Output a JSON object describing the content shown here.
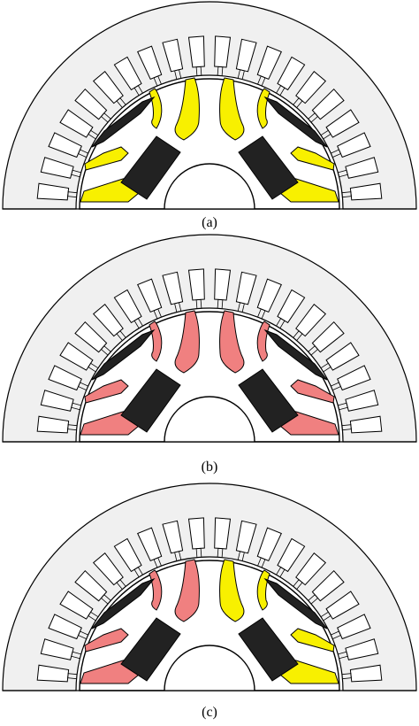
{
  "panels": [
    {
      "label": "(a)",
      "left_fill": "yellow",
      "right_fill": "yellow"
    },
    {
      "label": "(b)",
      "left_fill": "pink",
      "right_fill": "pink"
    },
    {
      "label": "(c)",
      "left_fill": "pink",
      "right_fill": "yellow"
    }
  ],
  "colors": {
    "background": "#ffffff",
    "stator": "#f0f0f0",
    "rotor": "#ffffff",
    "outline": "#000000",
    "magnet": "#222222",
    "yellow": "#f8f000",
    "pink": "#f08080"
  },
  "slot_count": 20
}
